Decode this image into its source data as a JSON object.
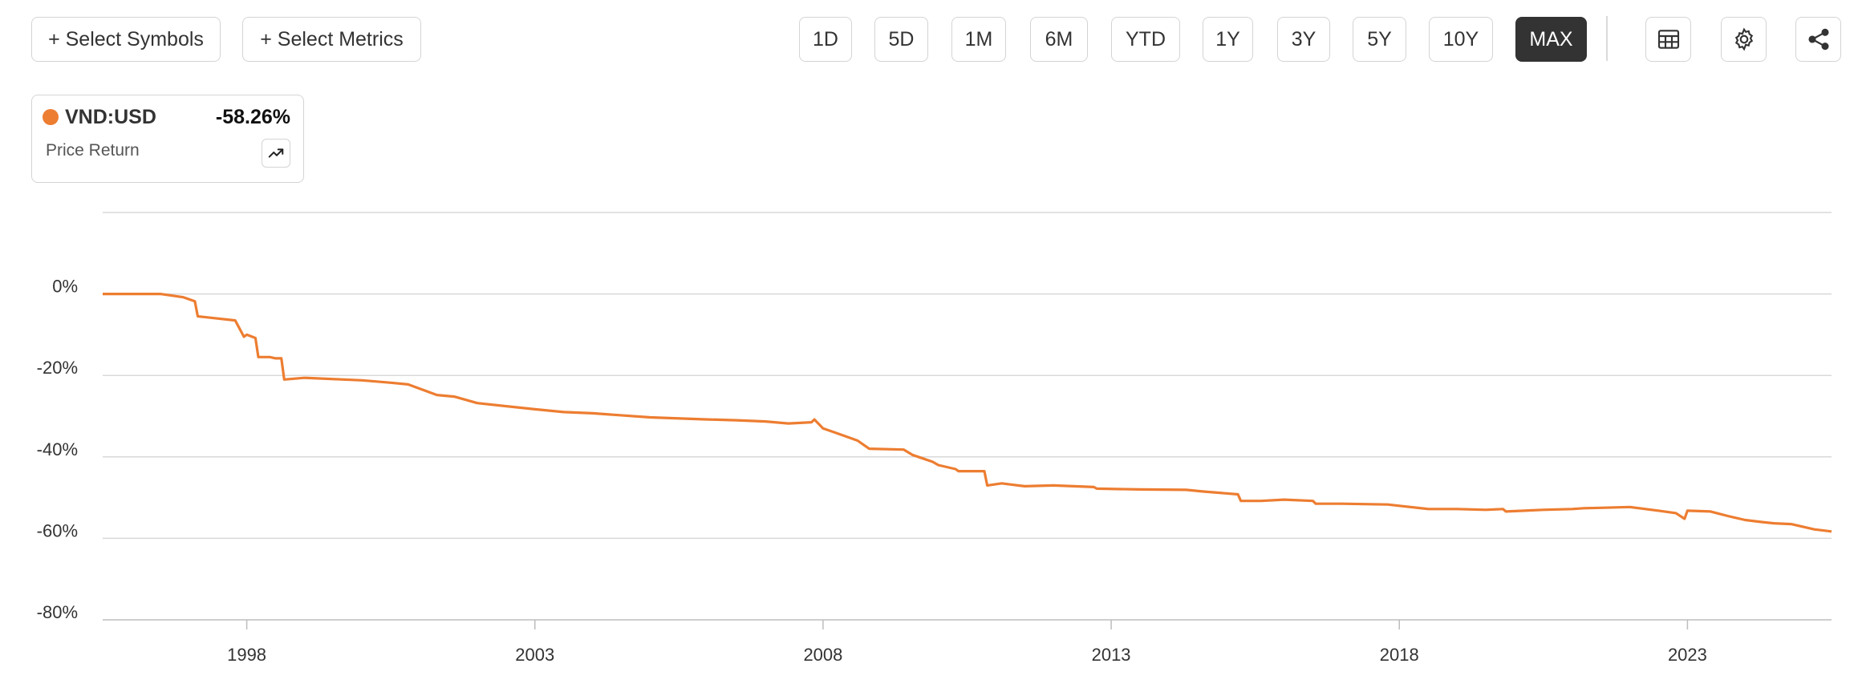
{
  "toolbar": {
    "select_symbols": "+ Select Symbols",
    "select_metrics": "+ Select Metrics",
    "ranges": [
      "1D",
      "5D",
      "1M",
      "6M",
      "YTD",
      "1Y",
      "3Y",
      "5Y",
      "10Y",
      "MAX"
    ],
    "active_range": "MAX",
    "icons": [
      "table-icon",
      "gear-icon",
      "share-icon"
    ]
  },
  "legend": {
    "symbol": "VND:USD",
    "value": "-58.26%",
    "metric": "Price Return"
  },
  "colors": {
    "series": "#ed7d31",
    "active_button": "#333333",
    "grid": "#d9d9d9"
  },
  "chart_data": {
    "type": "line",
    "title": "",
    "xlabel": "",
    "ylabel": "",
    "x_ticks": [
      "1998",
      "2003",
      "2008",
      "2013",
      "2018",
      "2023"
    ],
    "y_ticks": [
      "0%",
      "-20%",
      "-40%",
      "-60%",
      "-80%"
    ],
    "xlim": [
      1995.5,
      2025.5
    ],
    "ylim": [
      -80,
      20
    ],
    "grid": true,
    "series": [
      {
        "name": "VND:USD",
        "x": [
          1995.5,
          1996.5,
          1996.9,
          1997.1,
          1997.15,
          1997.8,
          1997.95,
          1998.0,
          1998.15,
          1998.2,
          1998.3,
          1998.4,
          1998.5,
          1998.6,
          1998.65,
          1999.0,
          2000.0,
          2000.5,
          2000.8,
          2001.3,
          2001.6,
          2002.0,
          2003.0,
          2003.5,
          2004.0,
          2005.0,
          2006.0,
          2006.5,
          2007.0,
          2007.4,
          2007.8,
          2007.85,
          2008.0,
          2008.2,
          2008.4,
          2008.6,
          2008.75,
          2008.8,
          2009.4,
          2009.55,
          2009.9,
          2010.0,
          2010.3,
          2010.35,
          2010.8,
          2010.85,
          2011.1,
          2011.5,
          2012.0,
          2012.7,
          2012.75,
          2013.5,
          2014.3,
          2014.6,
          2015.2,
          2015.25,
          2015.6,
          2016.0,
          2016.5,
          2016.55,
          2017.0,
          2017.8,
          2018.0,
          2018.5,
          2019.0,
          2019.5,
          2019.8,
          2019.85,
          2020.5,
          2021.0,
          2021.2,
          2021.5,
          2022.0,
          2022.5,
          2022.8,
          2022.95,
          2023.0,
          2023.4,
          2023.7,
          2024.0,
          2024.3,
          2024.5,
          2024.8,
          2025.2,
          2025.5
        ],
        "y": [
          0.0,
          0.0,
          -0.8,
          -1.8,
          -5.5,
          -6.5,
          -10.5,
          -10.0,
          -10.8,
          -15.5,
          -15.5,
          -15.5,
          -15.8,
          -15.8,
          -21.0,
          -20.6,
          -21.2,
          -21.8,
          -22.2,
          -24.8,
          -25.2,
          -26.8,
          -28.3,
          -29.0,
          -29.3,
          -30.3,
          -30.8,
          -31.0,
          -31.3,
          -31.8,
          -31.5,
          -30.8,
          -33.0,
          -34.0,
          -35.0,
          -36.0,
          -37.5,
          -38.0,
          -38.2,
          -39.5,
          -41.2,
          -42.0,
          -43.0,
          -43.5,
          -43.5,
          -47.0,
          -46.5,
          -47.2,
          -47.0,
          -47.4,
          -47.8,
          -48.0,
          -48.1,
          -48.5,
          -49.2,
          -50.8,
          -50.8,
          -50.5,
          -50.8,
          -51.5,
          -51.5,
          -51.7,
          -52.0,
          -52.8,
          -52.8,
          -53.0,
          -52.8,
          -53.4,
          -53.0,
          -52.8,
          -52.6,
          -52.5,
          -52.3,
          -53.2,
          -53.8,
          -55.2,
          -53.2,
          -53.4,
          -54.5,
          -55.5,
          -56.0,
          -56.3,
          -56.5,
          -57.8,
          -58.3
        ]
      }
    ]
  }
}
